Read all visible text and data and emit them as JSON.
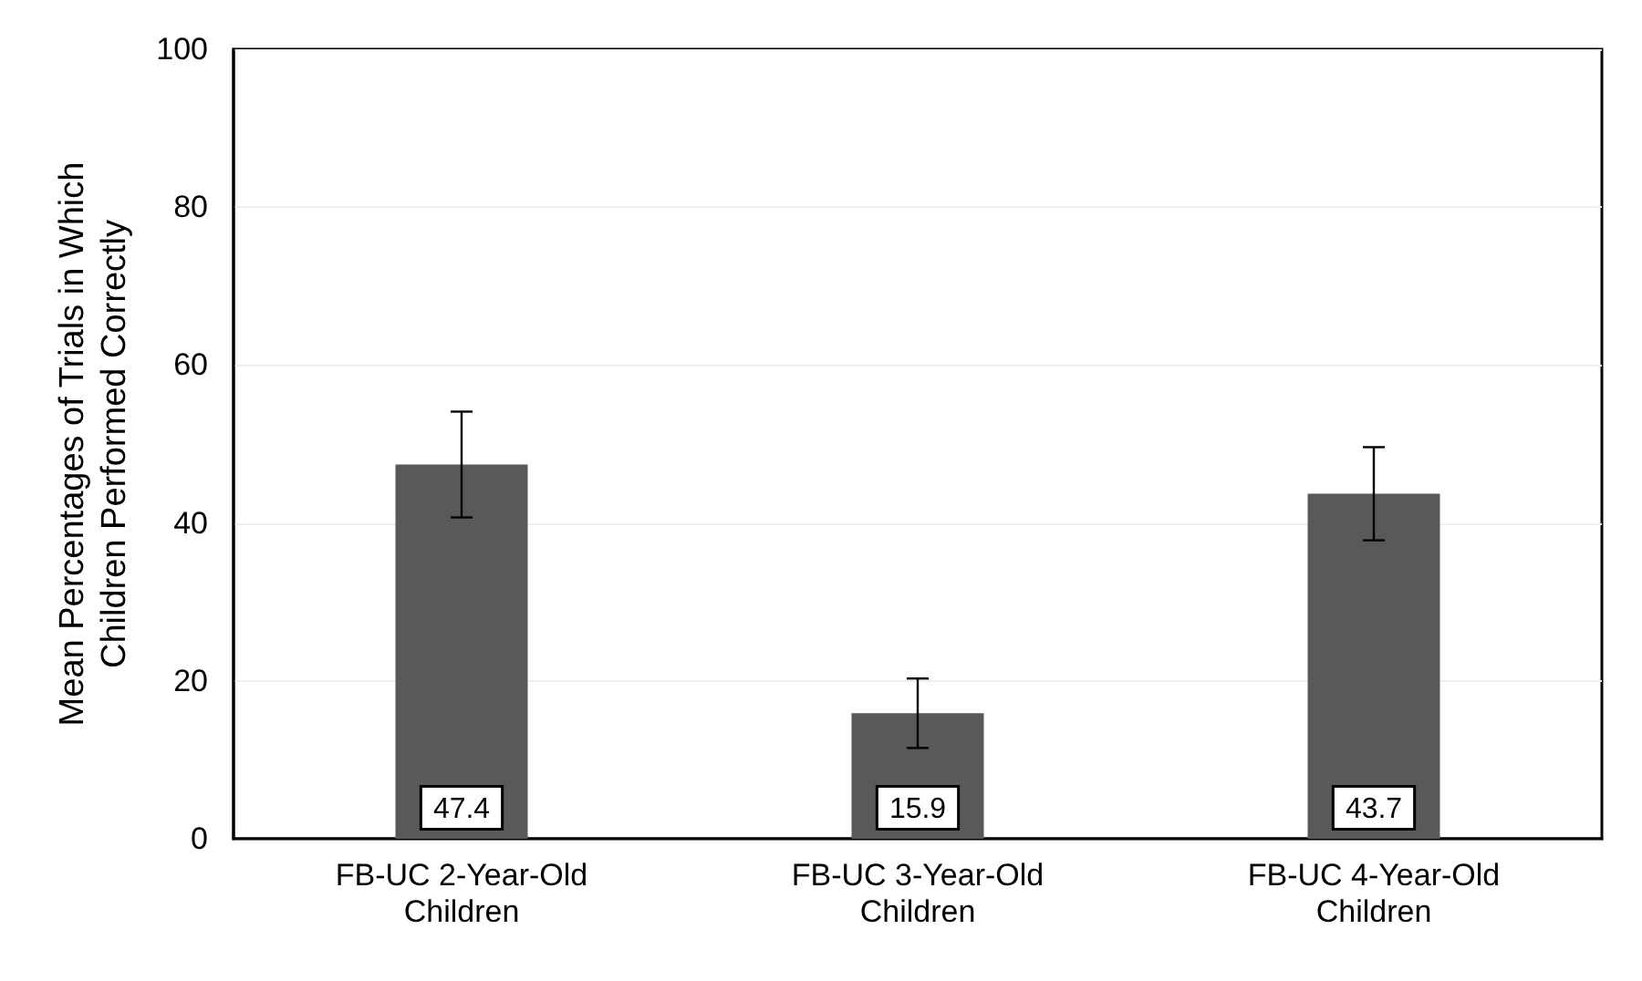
{
  "chart_data": {
    "type": "bar",
    "ylabel": "Mean Percentages of Trials in Which\nChildren Performed Correctly",
    "categories": [
      "FB-UC 2-Year-Old\nChildren",
      "FB-UC 3-Year-Old\nChildren",
      "FB-UC 4-Year-Old\nChildren"
    ],
    "values": [
      47.4,
      15.9,
      43.7
    ],
    "errors": [
      6.7,
      4.4,
      5.9
    ],
    "color": "#595959",
    "ylim": [
      0,
      100
    ],
    "yticks": [
      0,
      20,
      40,
      60,
      80,
      100
    ],
    "grid": "y",
    "data_labels": true
  }
}
